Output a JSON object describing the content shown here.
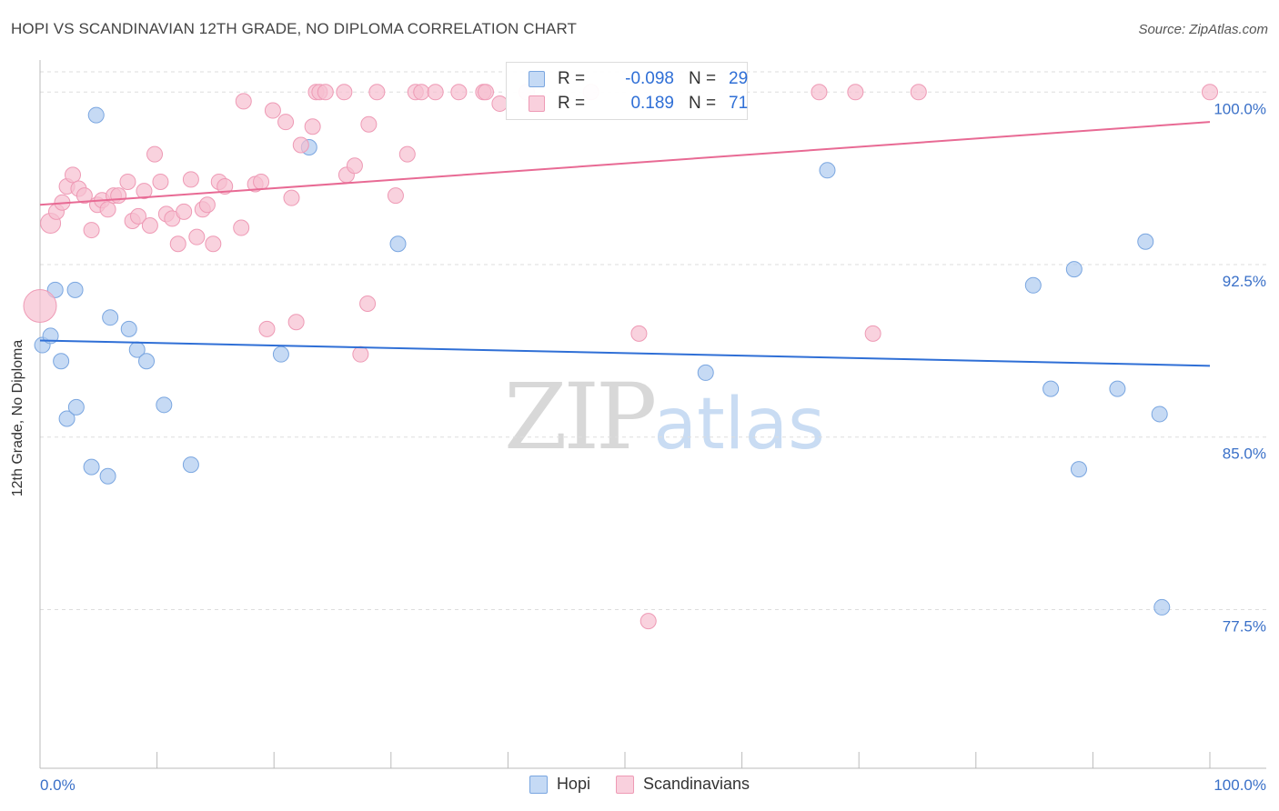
{
  "title": "HOPI VS SCANDINAVIAN 12TH GRADE, NO DIPLOMA CORRELATION CHART",
  "source": "Source: ZipAtlas.com",
  "watermark": {
    "zip": "ZIP",
    "atlas": "atlas"
  },
  "colors": {
    "hopi_fill": "#aecbf0",
    "hopi_stroke": "#7aa6e0",
    "hopi_line": "#2f6fd6",
    "scand_fill": "#f6bfd0",
    "scand_stroke": "#ee9ab5",
    "scand_line": "#e86a94",
    "grid": "#dddddd",
    "axis_text": "#3a70c8"
  },
  "stats": {
    "hopi": {
      "r_label": "R =",
      "r_value": "-0.098",
      "n_label": "N =",
      "n_value": "29"
    },
    "scand": {
      "r_label": "R =",
      "r_value": "0.189",
      "n_label": "N =",
      "n_value": "71"
    }
  },
  "legend": {
    "hopi": "Hopi",
    "scand": "Scandinavians"
  },
  "chart_data": {
    "type": "scatter",
    "title": "HOPI VS SCANDINAVIAN 12TH GRADE, NO DIPLOMA CORRELATION CHART",
    "xlabel": "",
    "ylabel": "12th Grade, No Diploma",
    "xlim": [
      0,
      100
    ],
    "ylim": [
      70.6,
      101.0
    ],
    "x_tick_labels": [
      "0.0%",
      "100.0%"
    ],
    "y_ticks": [
      77.5,
      85.0,
      92.5,
      100.0
    ],
    "y_tick_labels": [
      "77.5%",
      "85.0%",
      "92.5%",
      "100.0%"
    ],
    "grid": true,
    "series": [
      {
        "name": "Hopi",
        "trend": {
          "x": [
            0,
            100
          ],
          "y": [
            89.2,
            88.1
          ]
        },
        "points": [
          [
            0.2,
            89.0
          ],
          [
            0.9,
            89.4
          ],
          [
            1.3,
            91.4
          ],
          [
            1.8,
            88.3
          ],
          [
            2.3,
            85.8
          ],
          [
            3.1,
            86.3
          ],
          [
            3.0,
            91.4
          ],
          [
            4.4,
            83.7
          ],
          [
            5.8,
            83.3
          ],
          [
            6.0,
            90.2
          ],
          [
            7.6,
            89.7
          ],
          [
            8.3,
            88.8
          ],
          [
            9.1,
            88.3
          ],
          [
            10.6,
            86.4
          ],
          [
            12.9,
            83.8
          ],
          [
            4.8,
            99.0
          ],
          [
            20.6,
            88.6
          ],
          [
            23.0,
            97.6
          ],
          [
            30.6,
            93.4
          ],
          [
            56.9,
            87.8
          ],
          [
            67.3,
            96.6
          ],
          [
            84.9,
            91.6
          ],
          [
            86.4,
            87.1
          ],
          [
            88.4,
            92.3
          ],
          [
            88.8,
            83.6
          ],
          [
            92.1,
            87.1
          ],
          [
            94.5,
            93.5
          ],
          [
            95.7,
            86.0
          ],
          [
            95.9,
            77.6
          ]
        ]
      },
      {
        "name": "Scandinavians",
        "trend": {
          "x": [
            0,
            100
          ],
          "y": [
            95.1,
            98.7
          ]
        },
        "points": [
          [
            0.0,
            90.7
          ],
          [
            0.9,
            94.3
          ],
          [
            1.4,
            94.8
          ],
          [
            1.9,
            95.2
          ],
          [
            2.3,
            95.9
          ],
          [
            2.8,
            96.4
          ],
          [
            3.3,
            95.8
          ],
          [
            3.8,
            95.5
          ],
          [
            4.4,
            94.0
          ],
          [
            4.9,
            95.1
          ],
          [
            5.3,
            95.3
          ],
          [
            5.8,
            94.9
          ],
          [
            6.3,
            95.5
          ],
          [
            6.7,
            95.5
          ],
          [
            7.5,
            96.1
          ],
          [
            7.9,
            94.4
          ],
          [
            8.4,
            94.6
          ],
          [
            8.9,
            95.7
          ],
          [
            9.4,
            94.2
          ],
          [
            9.8,
            97.3
          ],
          [
            10.3,
            96.1
          ],
          [
            10.8,
            94.7
          ],
          [
            11.3,
            94.5
          ],
          [
            11.8,
            93.4
          ],
          [
            12.3,
            94.8
          ],
          [
            12.9,
            96.2
          ],
          [
            13.4,
            93.7
          ],
          [
            13.9,
            94.9
          ],
          [
            14.3,
            95.1
          ],
          [
            14.8,
            93.4
          ],
          [
            15.3,
            96.1
          ],
          [
            15.8,
            95.9
          ],
          [
            17.4,
            99.6
          ],
          [
            17.2,
            94.1
          ],
          [
            18.4,
            96.0
          ],
          [
            18.9,
            96.1
          ],
          [
            19.4,
            89.7
          ],
          [
            19.9,
            99.2
          ],
          [
            21.0,
            98.7
          ],
          [
            21.5,
            95.4
          ],
          [
            21.9,
            90.0
          ],
          [
            22.3,
            97.7
          ],
          [
            23.3,
            98.5
          ],
          [
            23.6,
            100.0
          ],
          [
            23.9,
            100.0
          ],
          [
            24.4,
            100.0
          ],
          [
            26.0,
            100.0
          ],
          [
            26.2,
            96.4
          ],
          [
            26.9,
            96.8
          ],
          [
            27.4,
            88.6
          ],
          [
            28.0,
            90.8
          ],
          [
            28.1,
            98.6
          ],
          [
            28.8,
            100.0
          ],
          [
            30.4,
            95.5
          ],
          [
            31.4,
            97.3
          ],
          [
            32.1,
            100.0
          ],
          [
            32.6,
            100.0
          ],
          [
            33.8,
            100.0
          ],
          [
            35.8,
            100.0
          ],
          [
            37.9,
            100.0
          ],
          [
            38.1,
            100.0
          ],
          [
            39.3,
            99.5
          ],
          [
            41.6,
            100.0
          ],
          [
            47.1,
            100.0
          ],
          [
            51.2,
            89.5
          ],
          [
            52.0,
            77.0
          ],
          [
            66.6,
            100.0
          ],
          [
            69.7,
            100.0
          ],
          [
            71.2,
            89.5
          ],
          [
            75.1,
            100.0
          ],
          [
            100.0,
            100.0
          ]
        ]
      }
    ]
  }
}
